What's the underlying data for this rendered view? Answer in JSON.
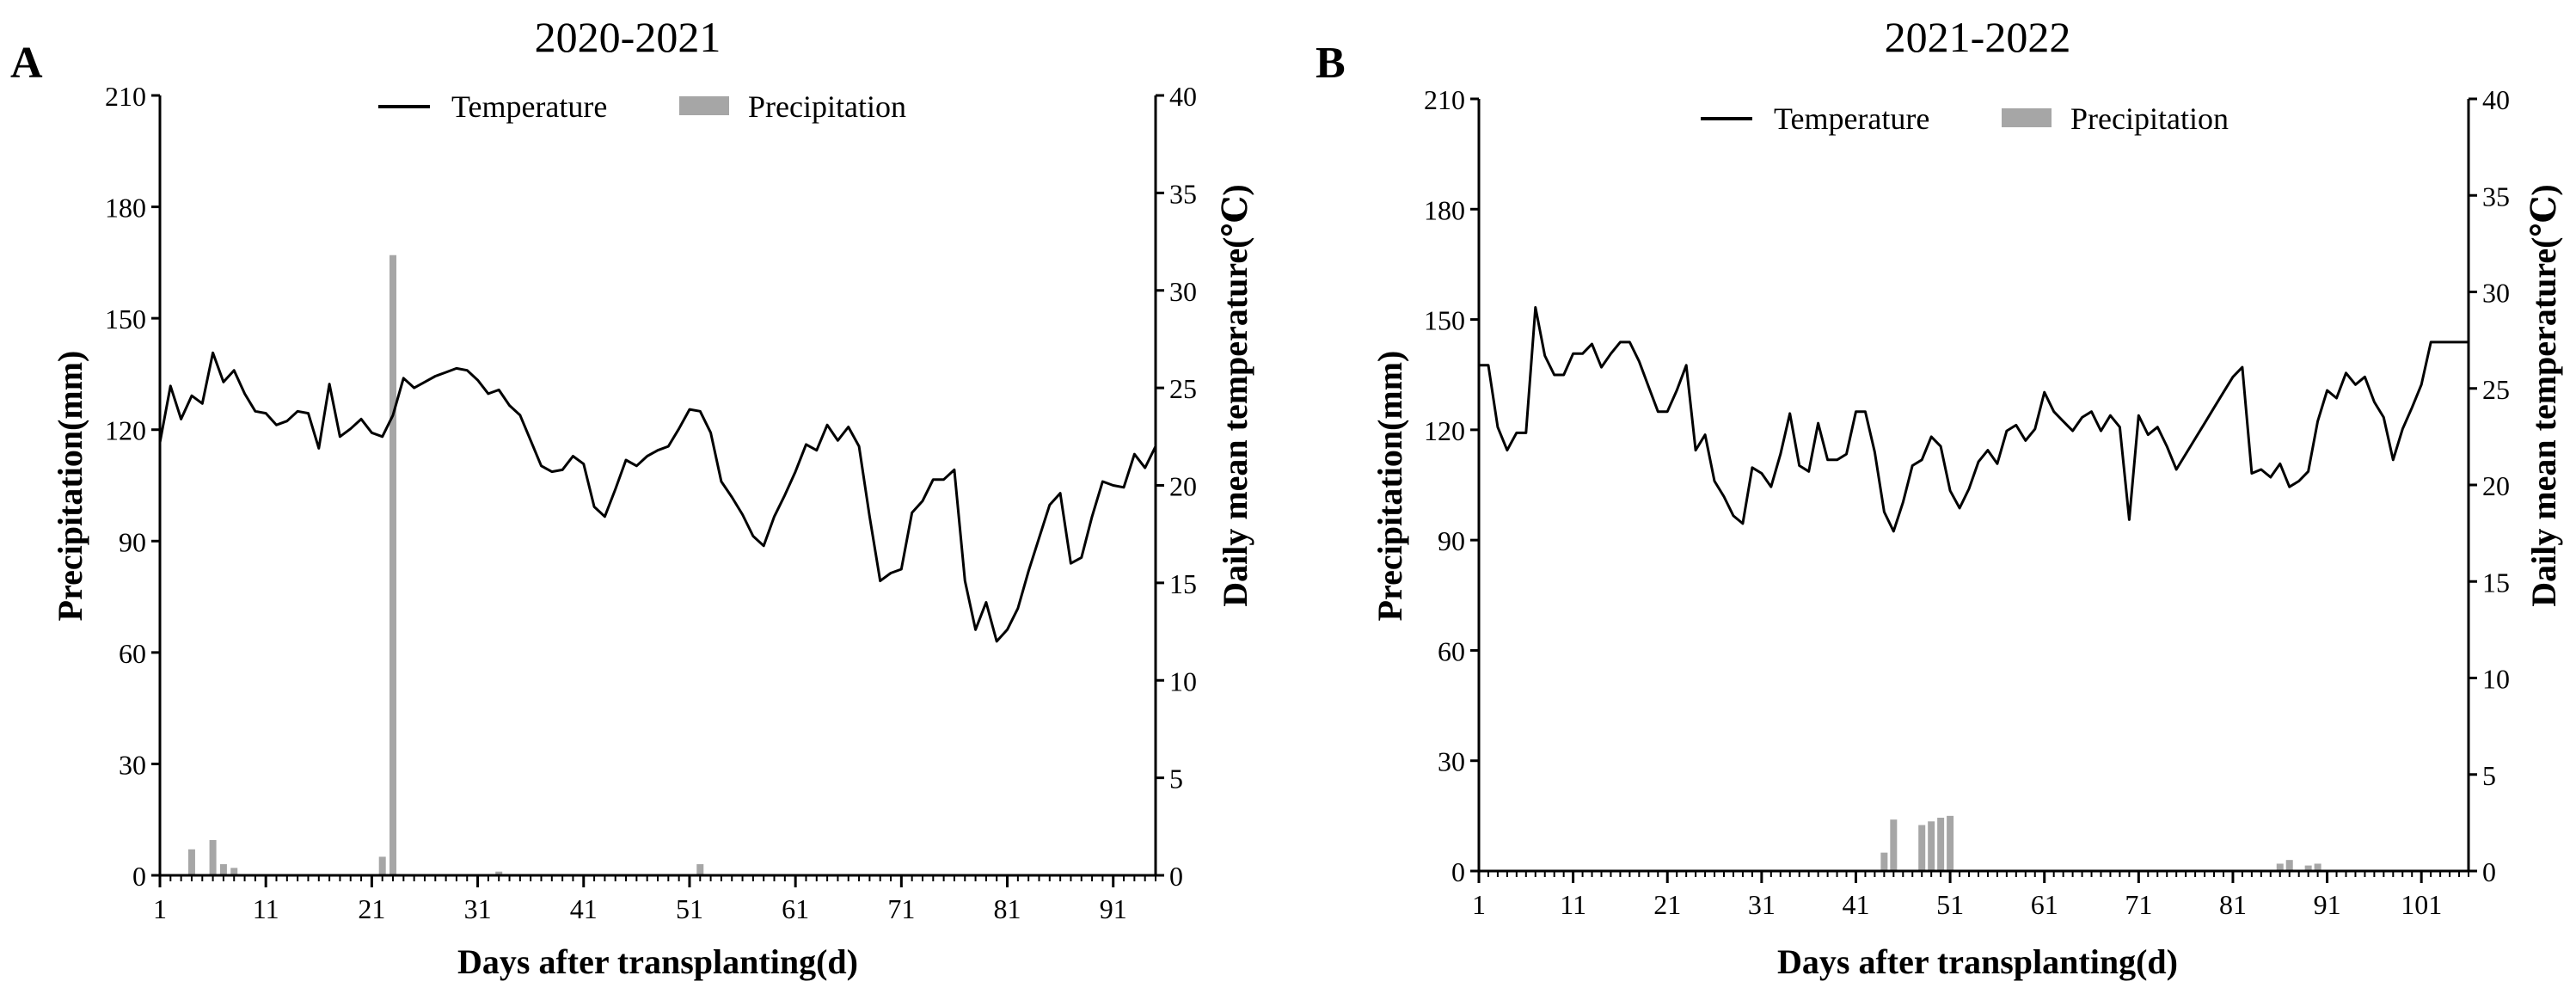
{
  "colors": {
    "temperature_line": "#000000",
    "precipitation_bar": "#a6a6a6",
    "axis": "#000000",
    "background": "#ffffff"
  },
  "chart_data": [
    {
      "panel_label": "A",
      "title": "2020-2021",
      "type": "bar+line",
      "xlabel": "Days after transplanting(d)",
      "ylabel_left": "Precipitation(mm)",
      "ylabel_right": "Daily mean temperature(℃)",
      "legend": {
        "temperature": "Temperature",
        "precipitation": "Precipitation",
        "position": "top-center"
      },
      "xlim": [
        1,
        95
      ],
      "xticks": [
        1,
        11,
        21,
        31,
        41,
        51,
        61,
        71,
        81,
        91
      ],
      "ylim_left": [
        0,
        210
      ],
      "yticks_left": [
        0,
        30,
        60,
        90,
        120,
        150,
        180,
        210
      ],
      "ylim_right": [
        0,
        40
      ],
      "yticks_right": [
        0,
        5,
        10,
        15,
        20,
        25,
        30,
        35,
        40
      ],
      "precipitation": {
        "x": [
          4,
          6,
          7,
          8,
          22,
          23,
          33,
          52
        ],
        "values": [
          7,
          9.5,
          3,
          2,
          5,
          167,
          1,
          3
        ]
      },
      "temperature": {
        "x": [
          1,
          2,
          3,
          4,
          5,
          6,
          7,
          8,
          9,
          10,
          11,
          12,
          13,
          14,
          15,
          16,
          17,
          18,
          19,
          20,
          21,
          22,
          23,
          24,
          25,
          26,
          27,
          28,
          29,
          30,
          31,
          32,
          33,
          34,
          35,
          36,
          37,
          38,
          39,
          40,
          41,
          42,
          43,
          44,
          45,
          46,
          47,
          48,
          49,
          50,
          51,
          52,
          53,
          54,
          55,
          56,
          57,
          58,
          59,
          60,
          61,
          62,
          63,
          64,
          65,
          66,
          67,
          68,
          69,
          70,
          71,
          72,
          73,
          74,
          75,
          76,
          77,
          78,
          79,
          80,
          81,
          82,
          83,
          84,
          85,
          86,
          87,
          88,
          89,
          90,
          91,
          92,
          93,
          94,
          95
        ],
        "values": [
          22.2,
          25.1,
          23.4,
          24.6,
          24.2,
          26.8,
          25.3,
          25.9,
          24.7,
          23.8,
          23.7,
          23.1,
          23.3,
          23.8,
          23.7,
          21.9,
          25.2,
          22.5,
          22.9,
          23.4,
          22.7,
          22.5,
          23.6,
          25.5,
          25.0,
          25.3,
          25.6,
          25.8,
          26.0,
          25.9,
          25.4,
          24.7,
          24.9,
          24.1,
          23.6,
          22.3,
          21.0,
          20.7,
          20.8,
          21.5,
          21.1,
          18.9,
          18.4,
          19.8,
          21.3,
          21.0,
          21.5,
          21.8,
          22.0,
          22.9,
          23.9,
          23.8,
          22.7,
          20.2,
          19.4,
          18.5,
          17.4,
          16.9,
          18.4,
          19.5,
          20.7,
          22.1,
          21.8,
          23.1,
          22.3,
          23.0,
          22.0,
          18.4,
          15.1,
          15.5,
          15.7,
          18.6,
          19.2,
          20.3,
          20.3,
          20.8,
          15.1,
          12.6,
          14.0,
          12.0,
          12.6,
          13.7,
          15.6,
          17.3,
          19.0,
          19.6,
          16.0,
          16.3,
          18.4,
          20.2,
          20.0,
          19.9,
          21.6,
          20.9,
          22.0
        ]
      }
    },
    {
      "panel_label": "B",
      "title": "2021-2022",
      "type": "bar+line",
      "xlabel": "Days after transplanting(d)",
      "ylabel_left": "Precipitation(mm)",
      "ylabel_right": "Daily mean temperature(℃)",
      "legend": {
        "temperature": "Temperature",
        "precipitation": "Precipitation",
        "position": "top-center"
      },
      "xlim": [
        1,
        106
      ],
      "xticks": [
        1,
        11,
        21,
        31,
        41,
        51,
        61,
        71,
        81,
        91,
        101
      ],
      "ylim_left": [
        0,
        210
      ],
      "yticks_left": [
        0,
        30,
        60,
        90,
        120,
        150,
        180,
        210
      ],
      "ylim_right": [
        0,
        40
      ],
      "yticks_right": [
        0,
        5,
        10,
        15,
        20,
        25,
        30,
        35,
        40
      ],
      "precipitation": {
        "x": [
          44,
          45,
          48,
          49,
          50,
          51,
          86,
          87,
          89,
          90
        ],
        "values": [
          5,
          14,
          12.5,
          13.5,
          14.5,
          15,
          2,
          3,
          1.5,
          2
        ]
      },
      "temperature": {
        "x": [
          1,
          2,
          3,
          4,
          5,
          6,
          7,
          8,
          9,
          10,
          11,
          12,
          13,
          14,
          15,
          16,
          17,
          18,
          19,
          20,
          21,
          22,
          23,
          24,
          25,
          26,
          27,
          28,
          29,
          30,
          31,
          32,
          33,
          34,
          35,
          36,
          37,
          38,
          39,
          40,
          41,
          42,
          43,
          44,
          45,
          46,
          47,
          48,
          49,
          50,
          51,
          52,
          53,
          54,
          55,
          56,
          57,
          58,
          59,
          60,
          61,
          62,
          63,
          64,
          65,
          66,
          67,
          68,
          69,
          70,
          71,
          72,
          73,
          74,
          75,
          76,
          77,
          78,
          79,
          80,
          81,
          82,
          83,
          84,
          85,
          86,
          87,
          88,
          89,
          90,
          91,
          92,
          93,
          94,
          95,
          96,
          97,
          98,
          99,
          100,
          101,
          102,
          103,
          104,
          105,
          106
        ],
        "values": [
          26.2,
          26.2,
          23.0,
          21.8,
          22.7,
          22.7,
          29.2,
          26.7,
          25.7,
          25.7,
          26.8,
          26.8,
          27.3,
          26.1,
          26.8,
          27.4,
          27.4,
          26.4,
          25.1,
          23.8,
          23.8,
          24.9,
          26.2,
          21.8,
          22.6,
          20.2,
          19.4,
          18.4,
          18.0,
          20.9,
          20.6,
          19.9,
          21.6,
          23.7,
          21.0,
          20.7,
          23.2,
          21.3,
          21.3,
          21.6,
          23.8,
          23.8,
          21.7,
          18.6,
          17.6,
          19.1,
          21.0,
          21.3,
          22.5,
          22.0,
          19.7,
          18.8,
          19.8,
          21.2,
          21.8,
          21.1,
          22.8,
          23.1,
          22.3,
          22.9,
          24.8,
          23.8,
          23.3,
          22.8,
          23.5,
          23.8,
          22.8,
          23.6,
          23.0,
          18.2,
          23.6,
          22.6,
          23.0,
          22.0,
          20.8,
          21.6,
          22.4,
          23.2,
          24.0,
          24.8,
          25.6,
          26.1,
          20.6,
          20.8,
          20.4,
          21.1,
          19.9,
          20.2,
          20.7,
          23.3,
          24.9,
          24.5,
          25.8,
          25.2,
          25.6,
          24.3,
          23.5,
          21.3,
          22.9,
          24.0,
          25.2,
          27.4,
          27.4,
          27.4,
          27.4,
          27.4
        ]
      }
    }
  ]
}
